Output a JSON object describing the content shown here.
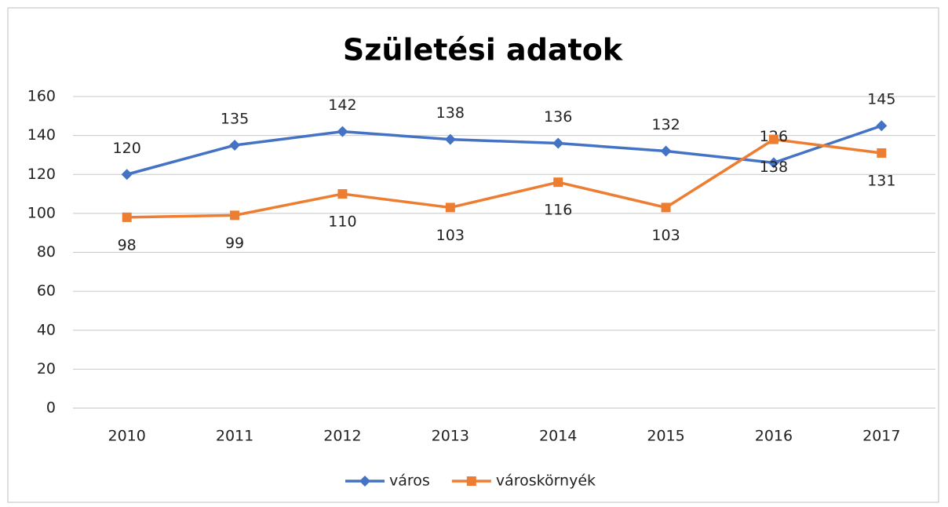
{
  "chart_data": {
    "type": "line",
    "title": "Születési adatok",
    "categories": [
      "2010",
      "2011",
      "2012",
      "2013",
      "2014",
      "2015",
      "2016",
      "2017"
    ],
    "series": [
      {
        "name": "város",
        "color": "#4472c4",
        "marker": "diamond",
        "values": [
          120,
          135,
          142,
          138,
          136,
          132,
          126,
          145
        ]
      },
      {
        "name": "városkörnyék",
        "color": "#ed7d31",
        "marker": "square",
        "values": [
          98,
          99,
          110,
          103,
          116,
          103,
          138,
          131
        ]
      }
    ],
    "ylim": [
      0,
      160
    ],
    "yticks": [
      0,
      20,
      40,
      60,
      80,
      100,
      120,
      140,
      160
    ],
    "grid": true,
    "legend": "bottom"
  }
}
